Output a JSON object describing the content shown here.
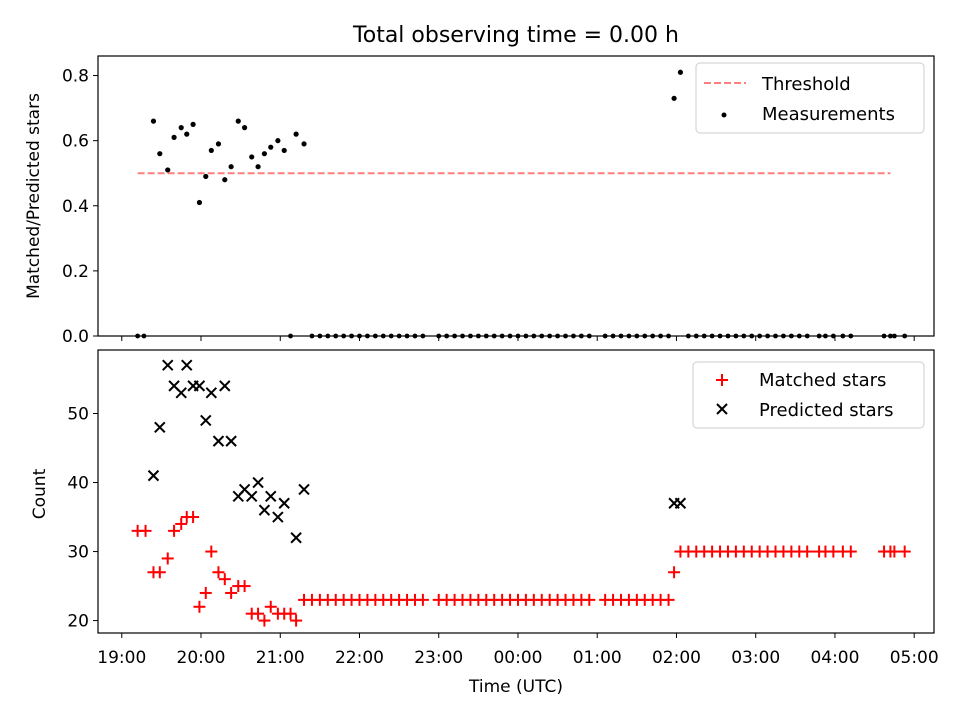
{
  "chart_data": {
    "title": "Total observing time = 0.00 h",
    "xlabel": "Time (UTC)",
    "x_unit": "hours since 19:00 UTC",
    "xlim": [
      -0.3,
      10.25
    ],
    "xticks": [
      {
        "v": 0,
        "label": "19:00"
      },
      {
        "v": 1,
        "label": "20:00"
      },
      {
        "v": 2,
        "label": "21:00"
      },
      {
        "v": 3,
        "label": "22:00"
      },
      {
        "v": 4,
        "label": "23:00"
      },
      {
        "v": 5,
        "label": "00:00"
      },
      {
        "v": 6,
        "label": "01:00"
      },
      {
        "v": 7,
        "label": "02:00"
      },
      {
        "v": 8,
        "label": "03:00"
      },
      {
        "v": 9,
        "label": "04:00"
      },
      {
        "v": 10,
        "label": "05:00"
      }
    ],
    "panels": [
      {
        "type": "scatter",
        "ylabel": "Matched/Predicted stars",
        "ylim": [
          0,
          0.86
        ],
        "yticks": [
          0,
          0.2,
          0.4,
          0.6,
          0.8
        ],
        "ytick_labels": [
          "0.0",
          "0.2",
          "0.4",
          "0.6",
          "0.8"
        ],
        "legend": {
          "position": "top-right",
          "entries": [
            "Threshold",
            "Measurements"
          ]
        },
        "threshold": {
          "name": "Threshold",
          "value": 0.5,
          "x_range": [
            0.2,
            9.7
          ],
          "color": "#ff7f7f"
        },
        "measurements": {
          "name": "Measurements",
          "color": "#000000",
          "nonzero": [
            {
              "x": 0.4,
              "y": 0.66
            },
            {
              "x": 0.48,
              "y": 0.56
            },
            {
              "x": 0.58,
              "y": 0.51
            },
            {
              "x": 0.66,
              "y": 0.61
            },
            {
              "x": 0.75,
              "y": 0.64
            },
            {
              "x": 0.82,
              "y": 0.62
            },
            {
              "x": 0.9,
              "y": 0.65
            },
            {
              "x": 0.98,
              "y": 0.41
            },
            {
              "x": 1.06,
              "y": 0.49
            },
            {
              "x": 1.13,
              "y": 0.57
            },
            {
              "x": 1.22,
              "y": 0.59
            },
            {
              "x": 1.3,
              "y": 0.48
            },
            {
              "x": 1.38,
              "y": 0.52
            },
            {
              "x": 1.47,
              "y": 0.66
            },
            {
              "x": 1.55,
              "y": 0.64
            },
            {
              "x": 1.64,
              "y": 0.55
            },
            {
              "x": 1.72,
              "y": 0.52
            },
            {
              "x": 1.8,
              "y": 0.56
            },
            {
              "x": 1.88,
              "y": 0.58
            },
            {
              "x": 1.97,
              "y": 0.6
            },
            {
              "x": 2.05,
              "y": 0.57
            },
            {
              "x": 2.2,
              "y": 0.62
            },
            {
              "x": 2.3,
              "y": 0.59
            },
            {
              "x": 6.97,
              "y": 0.73
            },
            {
              "x": 7.05,
              "y": 0.81
            }
          ],
          "zeros_x": [
            0.2,
            0.28,
            2.13,
            2.4,
            2.5,
            2.6,
            2.7,
            2.8,
            2.9,
            3.0,
            3.1,
            3.2,
            3.3,
            3.4,
            3.5,
            3.6,
            3.7,
            3.8,
            4.0,
            4.1,
            4.2,
            4.3,
            4.4,
            4.5,
            4.6,
            4.7,
            4.8,
            4.9,
            5.0,
            5.1,
            5.2,
            5.3,
            5.4,
            5.5,
            5.6,
            5.7,
            5.8,
            5.9,
            6.1,
            6.2,
            6.3,
            6.4,
            6.5,
            6.6,
            6.7,
            6.8,
            6.9,
            7.15,
            7.25,
            7.35,
            7.45,
            7.55,
            7.65,
            7.75,
            7.85,
            7.95,
            8.05,
            8.15,
            8.25,
            8.35,
            8.45,
            8.55,
            8.65,
            8.8,
            8.88,
            8.98,
            9.1,
            9.2,
            9.62,
            9.7,
            9.75,
            9.88
          ]
        }
      },
      {
        "type": "scatter",
        "ylabel": "Count",
        "ylim": [
          18.2,
          59.2
        ],
        "yticks": [
          20,
          30,
          40,
          50
        ],
        "ytick_labels": [
          "20",
          "30",
          "40",
          "50"
        ],
        "legend": {
          "position": "top-right",
          "entries": [
            "Matched stars",
            "Predicted stars"
          ]
        },
        "matched": {
          "name": "Matched stars",
          "color": "#ff0000",
          "points": [
            {
              "x": 0.2,
              "y": 33
            },
            {
              "x": 0.3,
              "y": 33
            },
            {
              "x": 0.4,
              "y": 27
            },
            {
              "x": 0.48,
              "y": 27
            },
            {
              "x": 0.58,
              "y": 29
            },
            {
              "x": 0.66,
              "y": 33
            },
            {
              "x": 0.75,
              "y": 34
            },
            {
              "x": 0.82,
              "y": 35
            },
            {
              "x": 0.9,
              "y": 35
            },
            {
              "x": 0.98,
              "y": 22
            },
            {
              "x": 1.06,
              "y": 24
            },
            {
              "x": 1.13,
              "y": 30
            },
            {
              "x": 1.22,
              "y": 27
            },
            {
              "x": 1.3,
              "y": 26
            },
            {
              "x": 1.38,
              "y": 24
            },
            {
              "x": 1.47,
              "y": 25
            },
            {
              "x": 1.55,
              "y": 25
            },
            {
              "x": 1.64,
              "y": 21
            },
            {
              "x": 1.72,
              "y": 21
            },
            {
              "x": 1.8,
              "y": 20
            },
            {
              "x": 1.88,
              "y": 22
            },
            {
              "x": 1.97,
              "y": 21
            },
            {
              "x": 2.05,
              "y": 21
            },
            {
              "x": 2.13,
              "y": 21
            },
            {
              "x": 2.2,
              "y": 20
            },
            {
              "x": 2.3,
              "y": 23
            },
            {
              "x": 2.4,
              "y": 23
            },
            {
              "x": 2.5,
              "y": 23
            },
            {
              "x": 2.6,
              "y": 23
            },
            {
              "x": 2.7,
              "y": 23
            },
            {
              "x": 2.8,
              "y": 23
            },
            {
              "x": 2.9,
              "y": 23
            },
            {
              "x": 3.0,
              "y": 23
            },
            {
              "x": 3.1,
              "y": 23
            },
            {
              "x": 3.2,
              "y": 23
            },
            {
              "x": 3.3,
              "y": 23
            },
            {
              "x": 3.4,
              "y": 23
            },
            {
              "x": 3.5,
              "y": 23
            },
            {
              "x": 3.6,
              "y": 23
            },
            {
              "x": 3.7,
              "y": 23
            },
            {
              "x": 3.8,
              "y": 23
            },
            {
              "x": 4.0,
              "y": 23
            },
            {
              "x": 4.1,
              "y": 23
            },
            {
              "x": 4.2,
              "y": 23
            },
            {
              "x": 4.3,
              "y": 23
            },
            {
              "x": 4.4,
              "y": 23
            },
            {
              "x": 4.5,
              "y": 23
            },
            {
              "x": 4.6,
              "y": 23
            },
            {
              "x": 4.7,
              "y": 23
            },
            {
              "x": 4.8,
              "y": 23
            },
            {
              "x": 4.9,
              "y": 23
            },
            {
              "x": 5.0,
              "y": 23
            },
            {
              "x": 5.1,
              "y": 23
            },
            {
              "x": 5.2,
              "y": 23
            },
            {
              "x": 5.3,
              "y": 23
            },
            {
              "x": 5.4,
              "y": 23
            },
            {
              "x": 5.5,
              "y": 23
            },
            {
              "x": 5.6,
              "y": 23
            },
            {
              "x": 5.7,
              "y": 23
            },
            {
              "x": 5.8,
              "y": 23
            },
            {
              "x": 5.9,
              "y": 23
            },
            {
              "x": 6.1,
              "y": 23
            },
            {
              "x": 6.2,
              "y": 23
            },
            {
              "x": 6.3,
              "y": 23
            },
            {
              "x": 6.4,
              "y": 23
            },
            {
              "x": 6.5,
              "y": 23
            },
            {
              "x": 6.6,
              "y": 23
            },
            {
              "x": 6.7,
              "y": 23
            },
            {
              "x": 6.8,
              "y": 23
            },
            {
              "x": 6.9,
              "y": 23
            },
            {
              "x": 6.97,
              "y": 27
            },
            {
              "x": 7.05,
              "y": 30
            },
            {
              "x": 7.15,
              "y": 30
            },
            {
              "x": 7.25,
              "y": 30
            },
            {
              "x": 7.35,
              "y": 30
            },
            {
              "x": 7.45,
              "y": 30
            },
            {
              "x": 7.55,
              "y": 30
            },
            {
              "x": 7.65,
              "y": 30
            },
            {
              "x": 7.75,
              "y": 30
            },
            {
              "x": 7.85,
              "y": 30
            },
            {
              "x": 7.95,
              "y": 30
            },
            {
              "x": 8.05,
              "y": 30
            },
            {
              "x": 8.15,
              "y": 30
            },
            {
              "x": 8.25,
              "y": 30
            },
            {
              "x": 8.35,
              "y": 30
            },
            {
              "x": 8.45,
              "y": 30
            },
            {
              "x": 8.55,
              "y": 30
            },
            {
              "x": 8.65,
              "y": 30
            },
            {
              "x": 8.8,
              "y": 30
            },
            {
              "x": 8.88,
              "y": 30
            },
            {
              "x": 8.98,
              "y": 30
            },
            {
              "x": 9.1,
              "y": 30
            },
            {
              "x": 9.2,
              "y": 30
            },
            {
              "x": 9.62,
              "y": 30
            },
            {
              "x": 9.7,
              "y": 30
            },
            {
              "x": 9.75,
              "y": 30
            },
            {
              "x": 9.88,
              "y": 30
            }
          ]
        },
        "predicted": {
          "name": "Predicted stars",
          "color": "#000000",
          "points": [
            {
              "x": 0.4,
              "y": 41
            },
            {
              "x": 0.48,
              "y": 48
            },
            {
              "x": 0.58,
              "y": 57
            },
            {
              "x": 0.66,
              "y": 54
            },
            {
              "x": 0.75,
              "y": 53
            },
            {
              "x": 0.82,
              "y": 57
            },
            {
              "x": 0.9,
              "y": 54
            },
            {
              "x": 0.98,
              "y": 54
            },
            {
              "x": 1.06,
              "y": 49
            },
            {
              "x": 1.13,
              "y": 53
            },
            {
              "x": 1.22,
              "y": 46
            },
            {
              "x": 1.3,
              "y": 54
            },
            {
              "x": 1.38,
              "y": 46
            },
            {
              "x": 1.47,
              "y": 38
            },
            {
              "x": 1.55,
              "y": 39
            },
            {
              "x": 1.64,
              "y": 38
            },
            {
              "x": 1.72,
              "y": 40
            },
            {
              "x": 1.8,
              "y": 36
            },
            {
              "x": 1.88,
              "y": 38
            },
            {
              "x": 1.97,
              "y": 35
            },
            {
              "x": 2.05,
              "y": 37
            },
            {
              "x": 2.2,
              "y": 32
            },
            {
              "x": 2.3,
              "y": 39
            },
            {
              "x": 6.97,
              "y": 37
            },
            {
              "x": 7.05,
              "y": 37
            }
          ]
        }
      }
    ]
  }
}
